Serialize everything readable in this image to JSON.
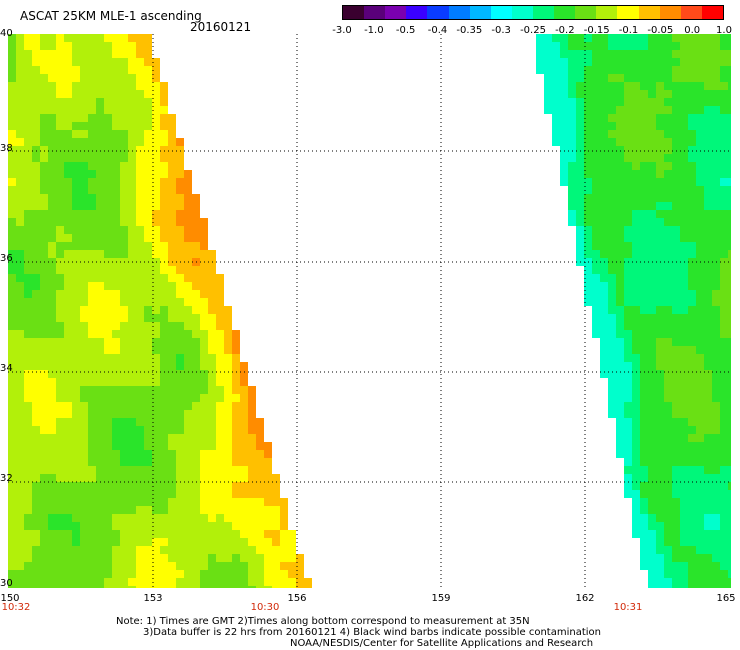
{
  "header": {
    "title": "ASCAT 25KM MLE-1 ascending",
    "date": "20160121"
  },
  "colorbar": {
    "colors": [
      "#3a002f",
      "#5a007a",
      "#7a00b0",
      "#3a00ff",
      "#0a3cff",
      "#007cff",
      "#00b8ff",
      "#00ffff",
      "#00ffcc",
      "#00f77a",
      "#2ae42a",
      "#6ae014",
      "#b2f00a",
      "#ffff00",
      "#ffc000",
      "#ff8c00",
      "#ff4a1a",
      "#ff0000"
    ],
    "labels": [
      "-3.0",
      "-1.0",
      "-0.5",
      "-0.4",
      "-0.35",
      "-0.3",
      "-0.25",
      "-0.2",
      "-0.15",
      "-0.1",
      "-0.05",
      "0.0",
      "1.0"
    ]
  },
  "map": {
    "lat_labels": [
      "40",
      "38",
      "36",
      "34",
      "32",
      "30"
    ],
    "lon_labels": [
      "150",
      "153",
      "156",
      "159",
      "162",
      "165"
    ],
    "time_labels": [
      "10:32",
      "10:30",
      "10:31"
    ]
  },
  "notes": {
    "line1": "Note: 1) Times are GMT 2)Times along bottom correspond to measurement at 35N",
    "line2": "3)Data buffer is 22 hrs from 20160121 4) Black wind barbs indicate possible contamination",
    "line3": "NOAA/NESDIS/Center for Satellite Applications and Research"
  }
}
